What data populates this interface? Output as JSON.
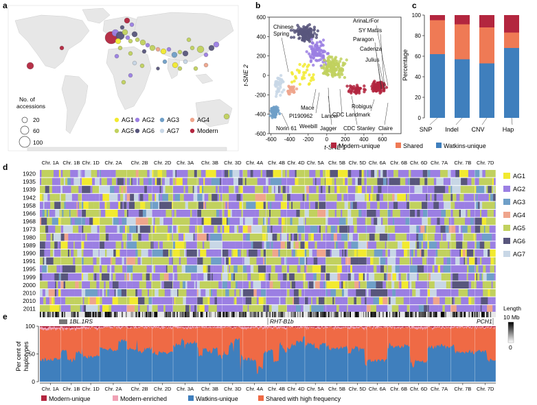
{
  "panel_labels": {
    "a": "a",
    "b": "b",
    "c": "c",
    "d": "d",
    "e": "e"
  },
  "colors": {
    "AG1": "#f2ea2f",
    "AG2": "#9b7fe3",
    "AG3": "#6f9fc8",
    "AG4": "#efa58c",
    "AG5": "#c1d15e",
    "AG6": "#58567c",
    "AG7": "#c8d7e6",
    "Modern": "#b3263f",
    "modern_unique": "#b3263f",
    "modern_enriched": "#f0a1b5",
    "watkins_unique": "#3f7fbd",
    "shared_high": "#ef6a45",
    "shared": "#ef7a55",
    "map_land": "#e7e7e7"
  },
  "panel_a": {
    "legend_groups": [
      "AG1",
      "AG2",
      "AG3",
      "AG4",
      "AG5",
      "AG6",
      "AG7",
      "Modern"
    ],
    "size_legend_title": [
      "No. of",
      "accessions"
    ],
    "size_legend_values": [
      20,
      60,
      100
    ]
  },
  "panel_b": {
    "chart_data": {
      "type": "scatter",
      "xlabel": "t-SNE 1",
      "ylabel": "t-SNE 2",
      "xlim": [
        -620,
        800
      ],
      "ylim": [
        -600,
        600
      ],
      "xticks": [
        -600,
        -400,
        -200,
        0,
        200,
        400,
        600
      ],
      "yticks": [
        -600,
        -400,
        -200,
        0,
        200,
        400,
        600
      ],
      "clusters": [
        {
          "group": "AG6",
          "cx": -230,
          "cy": 430,
          "sx": 140,
          "sy": 90,
          "n": 120
        },
        {
          "group": "AG2",
          "cx": -90,
          "cy": 230,
          "sx": 120,
          "sy": 130,
          "n": 90
        },
        {
          "group": "AG5",
          "cx": 60,
          "cy": 80,
          "sx": 150,
          "sy": 120,
          "n": 130
        },
        {
          "group": "AG3",
          "cx": -560,
          "cy": -380,
          "sx": 50,
          "sy": 70,
          "n": 60
        },
        {
          "group": "AG7",
          "cx": -520,
          "cy": -100,
          "sx": 60,
          "sy": 120,
          "n": 40
        },
        {
          "group": "AG4",
          "cx": -380,
          "cy": -150,
          "sx": 60,
          "sy": 60,
          "n": 30
        },
        {
          "group": "AG1",
          "cx": -250,
          "cy": 20,
          "sx": 120,
          "sy": 160,
          "n": 30
        },
        {
          "group": "Modern",
          "cx": 560,
          "cy": -120,
          "sx": 90,
          "sy": 80,
          "n": 90
        },
        {
          "group": "Modern",
          "cx": 320,
          "cy": -150,
          "sx": 120,
          "sy": 60,
          "n": 40
        }
      ],
      "annotations": [
        "Chinese Spring",
        "ArinaLrFor",
        "SY Mattis",
        "Paragon",
        "Cadenza",
        "Julius",
        "Mace",
        "PI190962",
        "Weebill",
        "Lancer",
        "CDC Landmark",
        "Robigus",
        "Norin 61",
        "Jagger",
        "CDC Stanley",
        "Claire"
      ]
    }
  },
  "panel_c": {
    "chart_data": {
      "type": "bar",
      "stacked": true,
      "categories": [
        "SNP",
        "Indel",
        "CNV",
        "Hap"
      ],
      "series": [
        {
          "name": "Watkins-unique",
          "values": [
            62,
            57,
            53,
            68
          ]
        },
        {
          "name": "Shared",
          "values": [
            33,
            34,
            35,
            15
          ]
        },
        {
          "name": "Modern-unique",
          "values": [
            5,
            9,
            12,
            17
          ]
        }
      ],
      "ylabel": "Percentage",
      "ylim": [
        0,
        100
      ],
      "yticks": [
        0,
        20,
        40,
        60,
        80,
        100
      ],
      "legend": [
        "Modern-unique",
        "Shared",
        "Watkins-unique"
      ]
    }
  },
  "panel_d": {
    "chart_data": {
      "type": "heatmap",
      "chromosomes": [
        "Chr. 1A",
        "Chr. 1B",
        "Chr. 1D",
        "Chr. 2A",
        "Chr. 2B",
        "Chr. 2D",
        "Chr. 3A",
        "Chr. 3B",
        "Chr. 3D",
        "Chr. 4A",
        "Chr. 4B",
        "Chr. 4D",
        "Chr. 5A",
        "Chr. 5B",
        "Chr. 5D",
        "Chr. 6A",
        "Chr. 6B",
        "Chr. 6D",
        "Chr. 7A",
        "Chr. 7B",
        "Chr. 7D"
      ],
      "chrom_lengths": [
        1.0,
        1.0,
        0.85,
        1.3,
        1.2,
        1.0,
        1.15,
        1.2,
        0.98,
        1.1,
        1.0,
        0.85,
        1.0,
        1.05,
        0.9,
        1.0,
        1.05,
        0.85,
        1.1,
        1.15,
        1.0
      ],
      "years": [
        "1920",
        "1935",
        "1939",
        "1942",
        "1958",
        "1966",
        "1968",
        "1973",
        "1980",
        "1989",
        "1990",
        "1991",
        "1995",
        "1999",
        "2000",
        "2010",
        "2010",
        "2011"
      ],
      "legend": [
        "AG1",
        "AG2",
        "AG3",
        "AG4",
        "AG5",
        "AG6",
        "AG7"
      ]
    }
  },
  "panel_e": {
    "chart_data": {
      "type": "area",
      "stacked": true,
      "ylabel": [
        "Per cent of",
        "haplotypes"
      ],
      "ylim": [
        0,
        100
      ],
      "yticks": [
        0,
        50,
        100
      ],
      "chromosomes": [
        "Chr. 1A",
        "Chr. 1B",
        "Chr. 1D",
        "Chr. 2A",
        "Chr. 2B",
        "Chr. 2D",
        "Chr. 3A",
        "Chr. 3B",
        "Chr. 3D",
        "Chr. 4A",
        "Chr. 4B",
        "Chr. 4D",
        "Chr. 5A",
        "Chr. 5B",
        "Chr. 5D",
        "Chr. 6A",
        "Chr. 6B",
        "Chr. 6D",
        "Chr. 7A",
        "Chr. 7B",
        "Chr. 7D"
      ],
      "watkins_unique_mean": [
        45,
        55,
        48,
        60,
        58,
        52,
        65,
        62,
        50,
        40,
        55,
        60,
        58,
        66,
        52,
        56,
        60,
        50,
        62,
        64,
        55
      ],
      "modern_unique_mean": [
        2,
        2,
        1,
        1,
        1,
        1,
        1,
        1,
        1,
        1,
        1,
        1,
        1,
        1,
        1,
        1,
        1,
        1,
        1,
        1,
        1
      ],
      "modern_enriched_mean": [
        4,
        3,
        3,
        2,
        2,
        2,
        3,
        2,
        2,
        3,
        3,
        2,
        2,
        2,
        3,
        2,
        2,
        3,
        2,
        2,
        2
      ],
      "annotations": [
        "1BL.1RS",
        "RHT-B1b",
        "PCH1"
      ],
      "length_legend": {
        "title": "Length",
        "max": "10 Mb",
        "min": "0"
      },
      "legend": [
        "Modern-unique",
        "Modern-enriched",
        "Watkins-unique",
        "Shared with high frequency"
      ]
    }
  }
}
